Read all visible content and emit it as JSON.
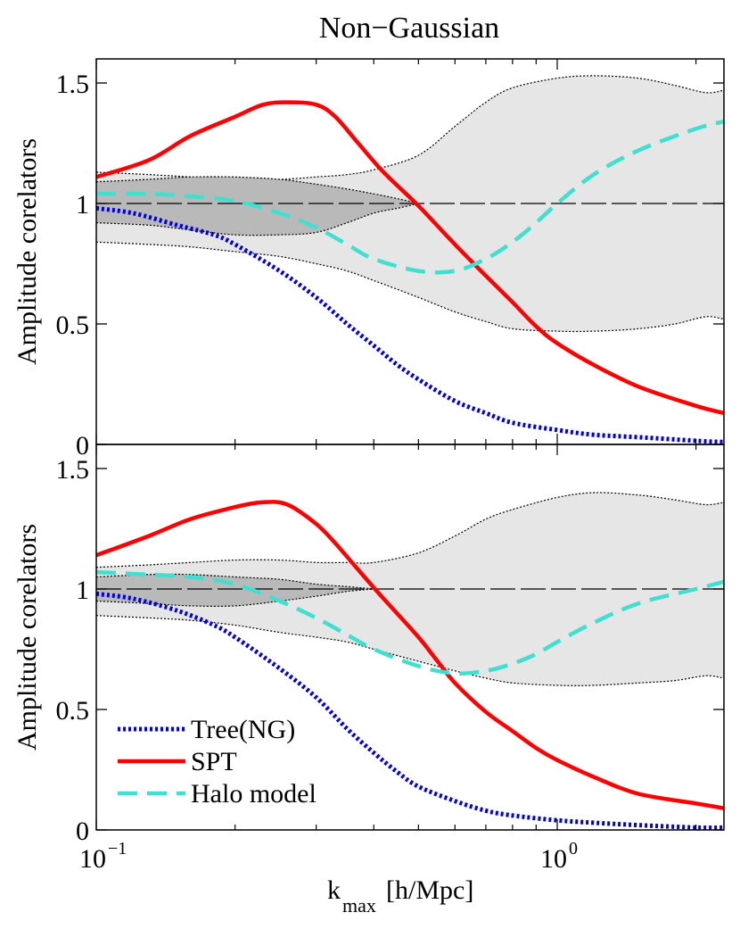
{
  "chart_data": {
    "type": "line",
    "title": "Non−Gaussian",
    "xlabel": {
      "main": "k",
      "sub": "max",
      "unit": "[h/Mpc]"
    },
    "xscale": "log",
    "xlim": [
      0.1,
      2.3
    ],
    "x_ticks": [
      {
        "value": 0.1,
        "base": "10",
        "exp": "−1"
      },
      {
        "value": 1.0,
        "base": "10",
        "exp": "0"
      }
    ],
    "legend": {
      "placement": "bottom-left (lower panel)",
      "entries": [
        "Tree(NG)",
        "SPT",
        "Halo model"
      ]
    },
    "colors": {
      "tree": "#0000dd",
      "spt": "#ff0000",
      "halo": "#40e0d0",
      "band_outer": "#e6e6e6",
      "band_inner": "#b9b9b9"
    },
    "panels": [
      {
        "ylabel": "Amplitude corelators",
        "ylim": [
          0,
          1.6
        ],
        "y_ticks": [
          {
            "value": 0,
            "label": "0"
          },
          {
            "value": 0.5,
            "label": "0.5"
          },
          {
            "value": 1,
            "label": "1"
          },
          {
            "value": 1.5,
            "label": "1.5"
          }
        ],
        "reference_line": 1,
        "outer_band": {
          "x": [
            0.1,
            0.13,
            0.16,
            0.2,
            0.25,
            0.3,
            0.35,
            0.4,
            0.5,
            0.6,
            0.7,
            0.8,
            1.0,
            1.2,
            1.5,
            1.8,
            2.1,
            2.3
          ],
          "upper": [
            1.13,
            1.12,
            1.11,
            1.1,
            1.1,
            1.11,
            1.12,
            1.14,
            1.2,
            1.32,
            1.42,
            1.48,
            1.52,
            1.53,
            1.52,
            1.49,
            1.46,
            1.47
          ],
          "lower": [
            0.84,
            0.83,
            0.82,
            0.8,
            0.78,
            0.75,
            0.72,
            0.68,
            0.61,
            0.55,
            0.51,
            0.48,
            0.47,
            0.47,
            0.48,
            0.5,
            0.53,
            0.52
          ]
        },
        "inner_band": {
          "x": [
            0.1,
            0.13,
            0.16,
            0.2,
            0.25,
            0.3,
            0.35,
            0.4,
            0.45,
            0.5
          ],
          "upper": [
            1.09,
            1.1,
            1.11,
            1.11,
            1.1,
            1.08,
            1.06,
            1.04,
            1.02,
            1.0
          ],
          "lower": [
            0.92,
            0.91,
            0.89,
            0.87,
            0.87,
            0.88,
            0.92,
            0.96,
            0.98,
            1.0
          ]
        },
        "series": [
          {
            "name": "Tree(NG)",
            "x": [
              0.1,
              0.12,
              0.15,
              0.18,
              0.2,
              0.25,
              0.3,
              0.35,
              0.4,
              0.45,
              0.5,
              0.6,
              0.7,
              0.8,
              1.0,
              1.2,
              1.5,
              2.0,
              2.3
            ],
            "values": [
              0.98,
              0.96,
              0.91,
              0.87,
              0.83,
              0.72,
              0.61,
              0.5,
              0.41,
              0.33,
              0.27,
              0.18,
              0.13,
              0.09,
              0.06,
              0.04,
              0.03,
              0.015,
              0.01
            ]
          },
          {
            "name": "SPT",
            "x": [
              0.1,
              0.13,
              0.16,
              0.2,
              0.23,
              0.26,
              0.3,
              0.33,
              0.37,
              0.42,
              0.5,
              0.6,
              0.7,
              0.8,
              0.9,
              1.0,
              1.2,
              1.5,
              2.0,
              2.3
            ],
            "values": [
              1.11,
              1.18,
              1.28,
              1.36,
              1.41,
              1.42,
              1.41,
              1.36,
              1.25,
              1.13,
              0.99,
              0.83,
              0.7,
              0.59,
              0.49,
              0.42,
              0.33,
              0.24,
              0.16,
              0.13
            ]
          },
          {
            "name": "Halo model",
            "x": [
              0.1,
              0.13,
              0.16,
              0.2,
              0.25,
              0.3,
              0.35,
              0.4,
              0.5,
              0.6,
              0.7,
              0.8,
              0.9,
              1.0,
              1.2,
              1.5,
              2.0,
              2.3
            ],
            "values": [
              1.04,
              1.04,
              1.03,
              1.01,
              0.96,
              0.9,
              0.83,
              0.77,
              0.72,
              0.72,
              0.77,
              0.84,
              0.92,
              1.0,
              1.12,
              1.22,
              1.31,
              1.34
            ]
          }
        ]
      },
      {
        "ylabel": "Amplitude corelators",
        "ylim": [
          0,
          1.6
        ],
        "y_ticks": [
          {
            "value": 0,
            "label": "0"
          },
          {
            "value": 0.5,
            "label": "0.5"
          },
          {
            "value": 1,
            "label": "1"
          },
          {
            "value": 1.5,
            "label": "1.5"
          }
        ],
        "reference_line": 1,
        "outer_band": {
          "x": [
            0.1,
            0.13,
            0.16,
            0.2,
            0.25,
            0.3,
            0.35,
            0.4,
            0.5,
            0.6,
            0.7,
            0.8,
            1.0,
            1.2,
            1.5,
            1.8,
            2.1,
            2.3
          ],
          "upper": [
            1.09,
            1.1,
            1.11,
            1.12,
            1.12,
            1.11,
            1.11,
            1.11,
            1.15,
            1.22,
            1.29,
            1.33,
            1.38,
            1.4,
            1.39,
            1.37,
            1.35,
            1.36
          ],
          "lower": [
            0.89,
            0.88,
            0.87,
            0.85,
            0.82,
            0.8,
            0.78,
            0.75,
            0.7,
            0.66,
            0.63,
            0.61,
            0.6,
            0.6,
            0.61,
            0.62,
            0.64,
            0.63
          ]
        },
        "inner_band": {
          "x": [
            0.1,
            0.13,
            0.16,
            0.2,
            0.25,
            0.3,
            0.35,
            0.4
          ],
          "upper": [
            1.05,
            1.06,
            1.06,
            1.05,
            1.04,
            1.02,
            1.01,
            1.0
          ],
          "lower": [
            0.95,
            0.94,
            0.93,
            0.93,
            0.95,
            0.97,
            0.99,
            1.0
          ]
        },
        "series": [
          {
            "name": "Tree(NG)",
            "x": [
              0.1,
              0.12,
              0.15,
              0.18,
              0.2,
              0.25,
              0.3,
              0.35,
              0.4,
              0.45,
              0.5,
              0.6,
              0.7,
              0.8,
              1.0,
              1.2,
              1.5,
              2.0,
              2.3
            ],
            "values": [
              0.98,
              0.96,
              0.91,
              0.85,
              0.8,
              0.67,
              0.55,
              0.42,
              0.32,
              0.24,
              0.18,
              0.12,
              0.08,
              0.06,
              0.04,
              0.03,
              0.02,
              0.01,
              0.01
            ]
          },
          {
            "name": "SPT",
            "x": [
              0.1,
              0.13,
              0.16,
              0.2,
              0.23,
              0.26,
              0.3,
              0.33,
              0.37,
              0.42,
              0.5,
              0.55,
              0.6,
              0.7,
              0.8,
              0.9,
              1.0,
              1.2,
              1.5,
              2.0,
              2.3
            ],
            "values": [
              1.14,
              1.22,
              1.29,
              1.34,
              1.36,
              1.35,
              1.27,
              1.19,
              1.08,
              0.96,
              0.8,
              0.7,
              0.61,
              0.49,
              0.41,
              0.34,
              0.29,
              0.22,
              0.15,
              0.11,
              0.09
            ]
          },
          {
            "name": "Halo model",
            "x": [
              0.1,
              0.13,
              0.16,
              0.2,
              0.25,
              0.3,
              0.35,
              0.4,
              0.5,
              0.6,
              0.7,
              0.8,
              0.9,
              1.0,
              1.2,
              1.5,
              2.0,
              2.3
            ],
            "values": [
              1.07,
              1.06,
              1.05,
              1.02,
              0.95,
              0.88,
              0.81,
              0.75,
              0.68,
              0.65,
              0.66,
              0.69,
              0.73,
              0.78,
              0.86,
              0.94,
              1.0,
              1.03
            ]
          }
        ]
      }
    ]
  }
}
